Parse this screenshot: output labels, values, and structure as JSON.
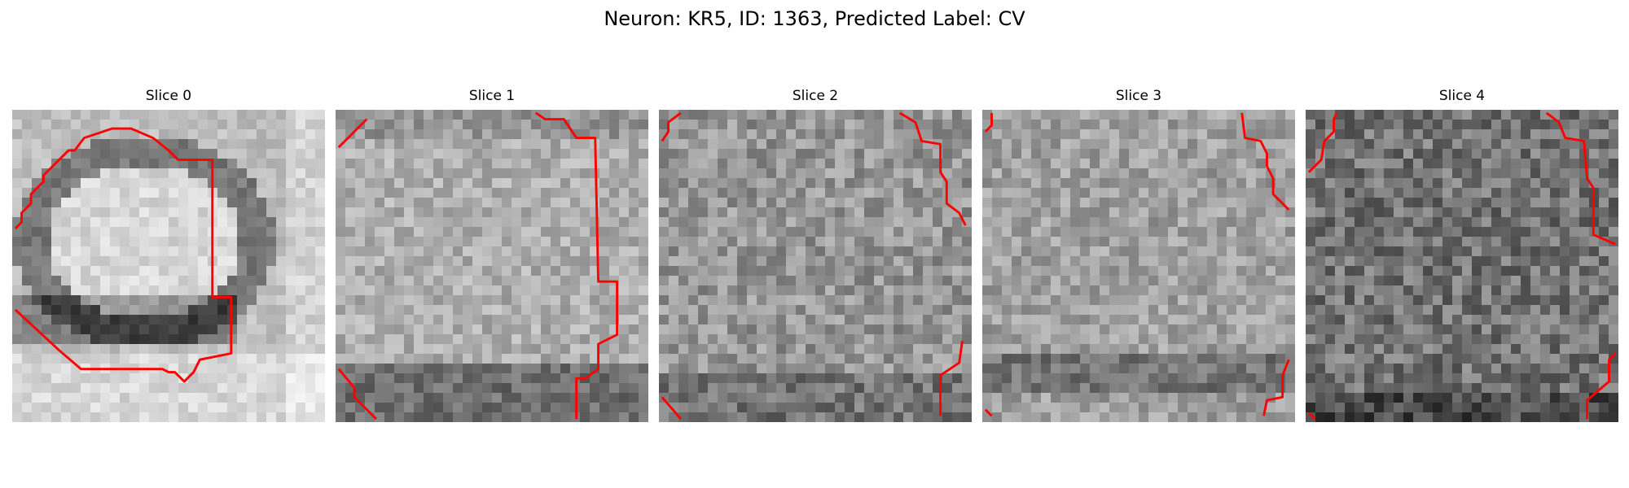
{
  "figure": {
    "title": "Neuron: KR5, ID: 1363, Predicted Label: CV"
  },
  "slices": [
    {
      "title": "Slice 0",
      "contour_color": "#ff0000"
    },
    {
      "title": "Slice 1",
      "contour_color": "#ff0000"
    },
    {
      "title": "Slice 2",
      "contour_color": "#ff0000"
    },
    {
      "title": "Slice 3",
      "contour_color": "#ff0000"
    },
    {
      "title": "Slice 4",
      "contour_color": "#ff0000"
    }
  ]
}
